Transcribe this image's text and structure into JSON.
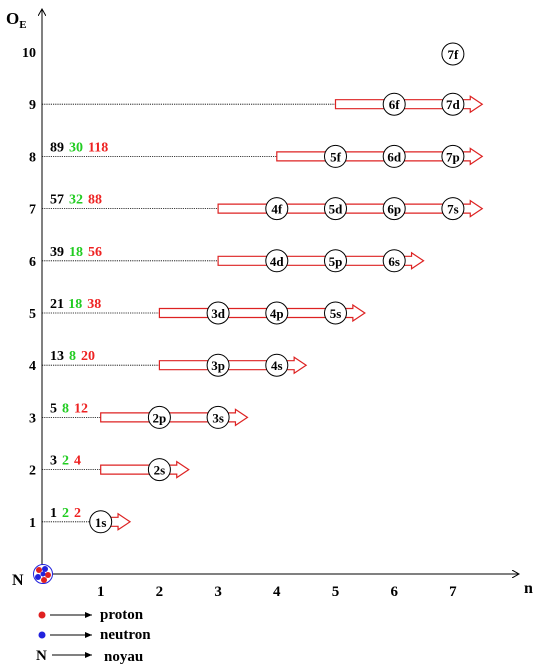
{
  "colors": {
    "black": "#000000",
    "green": "#22cc22",
    "red": "#ee2222",
    "arrow": "#dd2222",
    "nucleus_red": "#e02020",
    "nucleus_blue": "#2222dd"
  },
  "axis": {
    "y_label": "O",
    "y_label_sub": "E",
    "x_label": "n",
    "origin_label": "N",
    "x_ticks": [
      "1",
      "2",
      "3",
      "4",
      "5",
      "6",
      "7"
    ],
    "y_ticks": [
      "1",
      "2",
      "3",
      "4",
      "5",
      "6",
      "7",
      "8",
      "9",
      "10"
    ]
  },
  "rows": [
    {
      "level": 1,
      "n1": "1",
      "n2": "2",
      "n3": "2",
      "start": 1,
      "end": 1.5,
      "orbitals": [
        {
          "n": 1,
          "label": "1s"
        }
      ]
    },
    {
      "level": 2,
      "n1": "3",
      "n2": "2",
      "n3": "4",
      "start": 1,
      "end": 2.5,
      "orbitals": [
        {
          "n": 2,
          "label": "2s"
        }
      ]
    },
    {
      "level": 3,
      "n1": "5",
      "n2": "8",
      "n3": "12",
      "start": 1,
      "end": 3.5,
      "orbitals": [
        {
          "n": 2,
          "label": "2p"
        },
        {
          "n": 3,
          "label": "3s"
        }
      ]
    },
    {
      "level": 4,
      "n1": "13",
      "n2": "8",
      "n3": "20",
      "start": 2,
      "end": 4.5,
      "orbitals": [
        {
          "n": 3,
          "label": "3p"
        },
        {
          "n": 4,
          "label": "4s"
        }
      ]
    },
    {
      "level": 5,
      "n1": "21",
      "n2": "18",
      "n3": "38",
      "start": 2,
      "end": 5.5,
      "orbitals": [
        {
          "n": 3,
          "label": "3d"
        },
        {
          "n": 4,
          "label": "4p"
        },
        {
          "n": 5,
          "label": "5s"
        }
      ]
    },
    {
      "level": 6,
      "n1": "39",
      "n2": "18",
      "n3": "56",
      "start": 3,
      "end": 6.5,
      "orbitals": [
        {
          "n": 4,
          "label": "4d"
        },
        {
          "n": 5,
          "label": "5p"
        },
        {
          "n": 6,
          "label": "6s"
        }
      ]
    },
    {
      "level": 7,
      "n1": "57",
      "n2": "32",
      "n3": "88",
      "start": 3,
      "end": 7.5,
      "orbitals": [
        {
          "n": 4,
          "label": "4f"
        },
        {
          "n": 5,
          "label": "5d"
        },
        {
          "n": 6,
          "label": "6p"
        },
        {
          "n": 7,
          "label": "7s"
        }
      ]
    },
    {
      "level": 8,
      "n1": "89",
      "n2": "30",
      "n3": "118",
      "start": 4,
      "end": 7.5,
      "orbitals": [
        {
          "n": 5,
          "label": "5f"
        },
        {
          "n": 6,
          "label": "6d"
        },
        {
          "n": 7,
          "label": "7p"
        }
      ]
    },
    {
      "level": 9,
      "n1": "",
      "n2": "",
      "n3": "",
      "start": 5,
      "end": 7.5,
      "orbitals": [
        {
          "n": 6,
          "label": "6f"
        },
        {
          "n": 7,
          "label": "7d"
        }
      ]
    },
    {
      "level": 10,
      "n1": "",
      "n2": "",
      "n3": "",
      "start": null,
      "end": null,
      "orbitals": [
        {
          "n": 7,
          "label": "7f"
        }
      ]
    }
  ],
  "legend": [
    {
      "marker": "red-dot",
      "label": "proton"
    },
    {
      "marker": "blue-dot",
      "label": "neutron"
    },
    {
      "marker": "N",
      "label": "noyau"
    }
  ]
}
